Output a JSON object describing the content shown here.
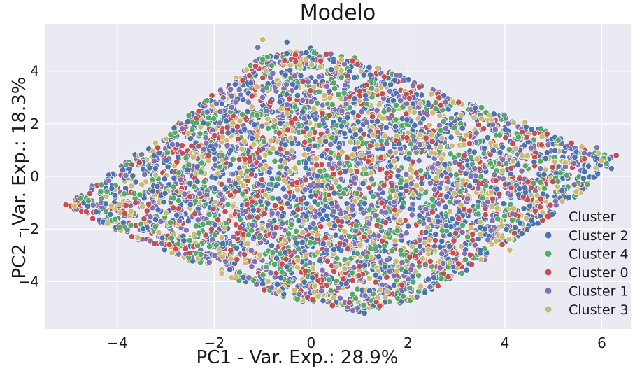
{
  "chart_data": {
    "type": "scatter",
    "title": "Modelo",
    "xlabel": "PC1 - Var. Exp.: 28.9%",
    "ylabel": "PC2 - Var. Exp.: 18.3%",
    "xlim": [
      -5.5,
      6.6
    ],
    "ylim": [
      -5.8,
      5.8
    ],
    "x_ticks": [
      -4,
      -2,
      0,
      2,
      4,
      6
    ],
    "y_ticks": [
      -4,
      -2,
      0,
      2,
      4
    ],
    "x_tick_labels": [
      "−4",
      "−2",
      "0",
      "2",
      "4",
      "6"
    ],
    "y_tick_labels": [
      "−4",
      "−2",
      "0",
      "2",
      "4"
    ],
    "grid": true,
    "background_color": "#eaeaf2",
    "legend": {
      "placement": "lower-right",
      "title": "Cluster",
      "title_color": "#c44e52"
    },
    "point_cloud_outline": [
      [
        -5.1,
        -1.1
      ],
      [
        -3.8,
        0.6
      ],
      [
        -2.6,
        2.3
      ],
      [
        -1.0,
        4.6
      ],
      [
        0.0,
        4.9
      ],
      [
        1.5,
        4.1
      ],
      [
        3.2,
        2.8
      ],
      [
        4.6,
        2.0
      ],
      [
        5.4,
        1.3
      ],
      [
        6.3,
        0.7
      ],
      [
        5.5,
        -0.8
      ],
      [
        4.4,
        -2.2
      ],
      [
        3.4,
        -3.4
      ],
      [
        2.1,
        -4.7
      ],
      [
        1.1,
        -5.2
      ],
      [
        -0.6,
        -4.6
      ],
      [
        -2.0,
        -3.6
      ],
      [
        -3.6,
        -2.4
      ]
    ],
    "series": [
      {
        "name": "Cluster 2",
        "color": "#4c72b0",
        "n_points": 1400,
        "extremes": [
          [
            -0.5,
            5.1
          ],
          [
            1.1,
            -5.2
          ],
          [
            6.2,
            0.3
          ],
          [
            -0.1,
            4.7
          ]
        ]
      },
      {
        "name": "Cluster 4",
        "color": "#55a868",
        "n_points": 1400,
        "extremes": [
          [
            1.4,
            -5.0
          ],
          [
            5.7,
            -0.3
          ],
          [
            0.9,
            4.5
          ],
          [
            -4.9,
            -1.1
          ]
        ]
      },
      {
        "name": "Cluster 0",
        "color": "#c44e52",
        "n_points": 1400,
        "extremes": [
          [
            6.3,
            0.8
          ],
          [
            -0.7,
            4.6
          ],
          [
            5.2,
            -0.6
          ],
          [
            -3.0,
            -2.6
          ]
        ]
      },
      {
        "name": "Cluster 1",
        "color": "#8172b2",
        "n_points": 1400,
        "extremes": [
          [
            5.9,
            1.1
          ],
          [
            0.7,
            -4.8
          ],
          [
            -1.1,
            4.9
          ],
          [
            6.1,
            0.4
          ]
        ]
      },
      {
        "name": "Cluster 3",
        "color": "#ccb974",
        "n_points": 1400,
        "extremes": [
          [
            -1.0,
            5.2
          ],
          [
            4.1,
            -2.8
          ],
          [
            5.8,
            0.8
          ],
          [
            6.0,
            0.6
          ]
        ]
      }
    ]
  }
}
